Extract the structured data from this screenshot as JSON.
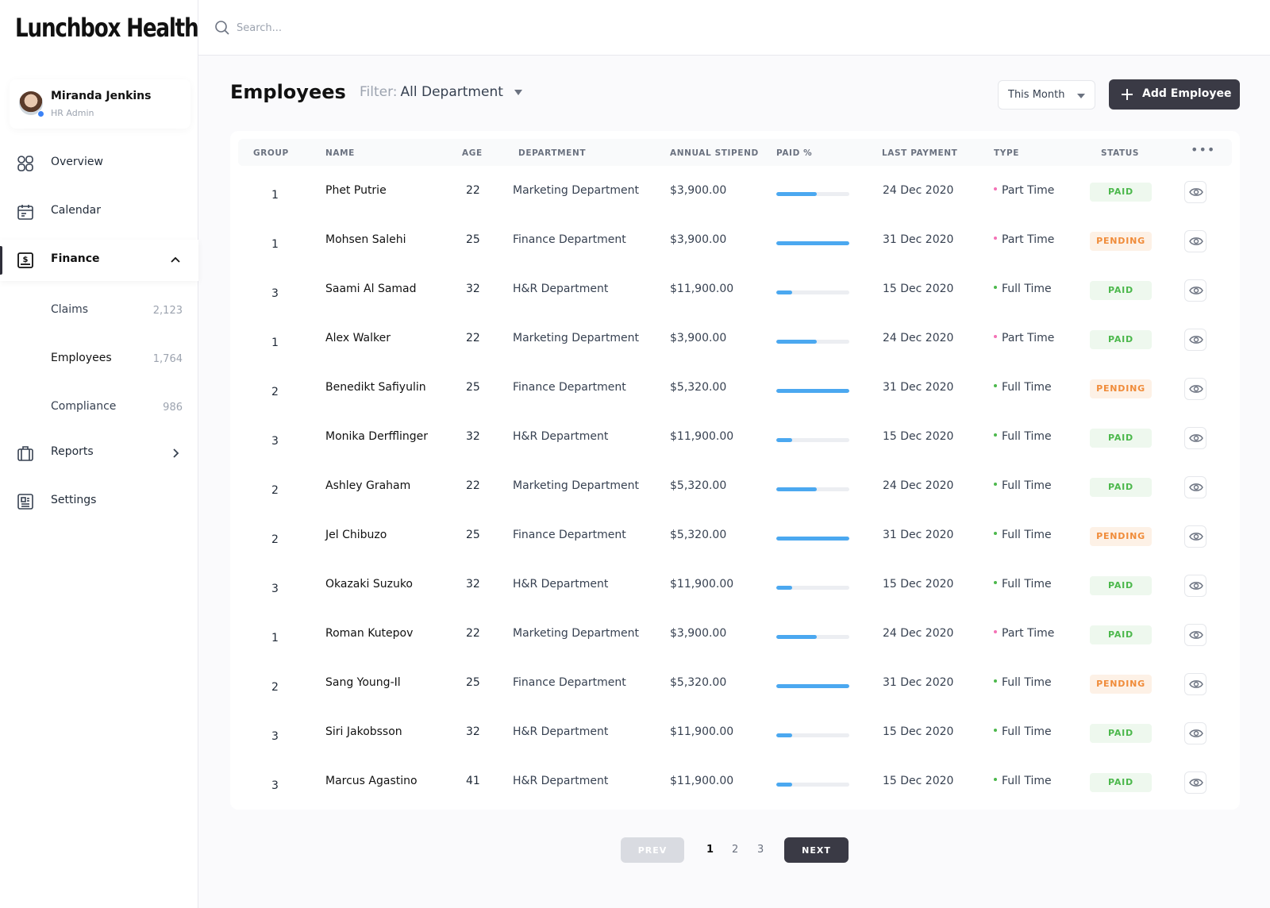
{
  "app": {
    "logo": "Lunchbox Health"
  },
  "user": {
    "name": "Miranda Jenkins",
    "role": "HR Admin"
  },
  "sidebar": {
    "items": [
      {
        "label": "Overview",
        "icon": "grid-icon"
      },
      {
        "label": "Calendar",
        "icon": "calendar-icon"
      },
      {
        "label": "Finance",
        "icon": "finance-icon",
        "expanded": true
      },
      {
        "label": "Reports",
        "icon": "briefcase-icon"
      },
      {
        "label": "Settings",
        "icon": "settings-icon"
      }
    ],
    "finance_sub": [
      {
        "label": "Claims",
        "count": "2,123"
      },
      {
        "label": "Employees",
        "count": "1,764"
      },
      {
        "label": "Compliance",
        "count": "986"
      }
    ]
  },
  "search": {
    "placeholder": "Search..."
  },
  "header": {
    "title": "Employees",
    "filter_label": "Filter:",
    "filter_value": "All Department",
    "period": "This Month",
    "add_label": "Add Employee"
  },
  "table": {
    "columns": [
      "GROUP",
      "NAME",
      "AGE",
      "DEPARTMENT",
      "ANNUAL STIPEND",
      "PAID %",
      "LAST PAYMENT",
      "TYPE",
      "STATUS"
    ],
    "more": "•••",
    "rows": [
      {
        "group": "1",
        "name": "Phet Putrie",
        "age": "22",
        "department": "Marketing Department",
        "stipend": "$3,900.00",
        "paid": 0.55,
        "last_payment": "24 Dec 2020",
        "type": "Part Time",
        "status": "PAID"
      },
      {
        "group": "1",
        "name": "Mohsen Salehi",
        "age": "25",
        "department": "Finance Department",
        "stipend": "$3,900.00",
        "paid": 1.0,
        "last_payment": "31 Dec 2020",
        "type": "Part Time",
        "status": "PENDING"
      },
      {
        "group": "3",
        "name": "Saami Al Samad",
        "age": "32",
        "department": "H&R Department",
        "stipend": "$11,900.00",
        "paid": 0.22,
        "last_payment": "15 Dec 2020",
        "type": "Full Time",
        "status": "PAID"
      },
      {
        "group": "1",
        "name": "Alex Walker",
        "age": "22",
        "department": "Marketing Department",
        "stipend": "$3,900.00",
        "paid": 0.55,
        "last_payment": "24 Dec 2020",
        "type": "Part Time",
        "status": "PAID"
      },
      {
        "group": "2",
        "name": "Benedikt Safiyulin",
        "age": "25",
        "department": "Finance Department",
        "stipend": "$5,320.00",
        "paid": 1.0,
        "last_payment": "31 Dec 2020",
        "type": "Full Time",
        "status": "PENDING"
      },
      {
        "group": "3",
        "name": "Monika Derfflinger",
        "age": "32",
        "department": "H&R Department",
        "stipend": "$11,900.00",
        "paid": 0.22,
        "last_payment": "15 Dec 2020",
        "type": "Full Time",
        "status": "PAID"
      },
      {
        "group": "2",
        "name": "Ashley Graham",
        "age": "22",
        "department": "Marketing Department",
        "stipend": "$5,320.00",
        "paid": 0.55,
        "last_payment": "24 Dec 2020",
        "type": "Full Time",
        "status": "PAID"
      },
      {
        "group": "2",
        "name": "Jel Chibuzo",
        "age": "25",
        "department": "Finance Department",
        "stipend": "$5,320.00",
        "paid": 1.0,
        "last_payment": "31 Dec 2020",
        "type": "Full Time",
        "status": "PENDING"
      },
      {
        "group": "3",
        "name": "Okazaki Suzuko",
        "age": "32",
        "department": "H&R Department",
        "stipend": "$11,900.00",
        "paid": 0.22,
        "last_payment": "15 Dec 2020",
        "type": "Full Time",
        "status": "PAID"
      },
      {
        "group": "1",
        "name": "Roman Kutepov",
        "age": "22",
        "department": "Marketing Department",
        "stipend": "$3,900.00",
        "paid": 0.55,
        "last_payment": "24 Dec 2020",
        "type": "Part Time",
        "status": "PAID"
      },
      {
        "group": "2",
        "name": "Sang Young-Il",
        "age": "25",
        "department": "Finance Department",
        "stipend": "$5,320.00",
        "paid": 1.0,
        "last_payment": "31 Dec 2020",
        "type": "Full Time",
        "status": "PENDING"
      },
      {
        "group": "3",
        "name": "Siri Jakobsson",
        "age": "32",
        "department": "H&R Department",
        "stipend": "$11,900.00",
        "paid": 0.22,
        "last_payment": "15 Dec 2020",
        "type": "Full Time",
        "status": "PAID"
      },
      {
        "group": "3",
        "name": "Marcus Agastino",
        "age": "41",
        "department": "H&R Department",
        "stipend": "$11,900.00",
        "paid": 0.22,
        "last_payment": "15 Dec 2020",
        "type": "Full Time",
        "status": "PAID"
      }
    ]
  },
  "pagination": {
    "prev": "PREV",
    "next": "NEXT",
    "pages": [
      "1",
      "2",
      "3"
    ],
    "current": "1"
  },
  "colors": {
    "accent_dark": "#3a3a45",
    "bar": "#4ba8f0",
    "paid_text": "#4cb84c",
    "paid_bg": "#eef8ee",
    "pending_text": "#f08c3a",
    "pending_bg": "#fdf1e6",
    "part_time_dot": "#f472b6",
    "full_time_dot": "#4cb84c"
  }
}
